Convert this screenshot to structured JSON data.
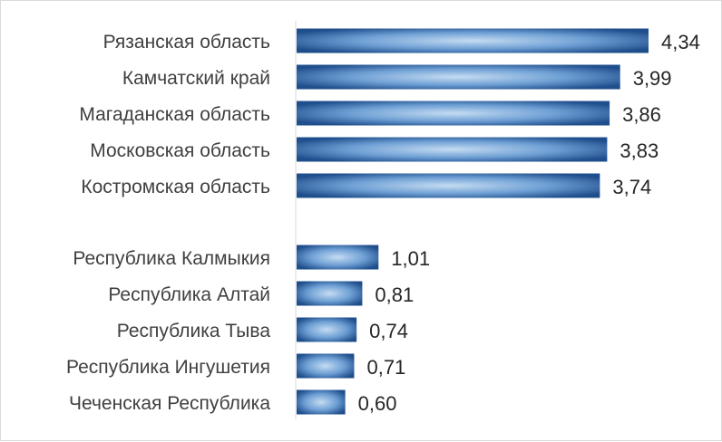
{
  "chart_data": {
    "type": "bar",
    "orientation": "horizontal",
    "title": "",
    "xlabel": "",
    "ylabel": "",
    "grid": false,
    "legend": "none",
    "xlim": [
      0,
      4.34
    ],
    "groups": [
      {
        "categories": [
          "Рязанская область",
          "Камчатский край",
          "Магаданская область",
          "Московская область",
          "Костромская область"
        ],
        "values": [
          4.34,
          3.99,
          3.86,
          3.83,
          3.74
        ],
        "value_labels": [
          "4,34",
          "3,99",
          "3,86",
          "3,83",
          "3,74"
        ]
      },
      {
        "categories": [
          "Республика Калмыкия",
          "Республика Алтай",
          "Республика Тыва",
          "Республика Ингушетия",
          "Чеченская Республика"
        ],
        "values": [
          1.01,
          0.81,
          0.74,
          0.71,
          0.6
        ],
        "value_labels": [
          "1,01",
          "0,81",
          "0,74",
          "0,71",
          "0,60"
        ]
      }
    ],
    "colors": {
      "bar_edge": "#1f4e8c",
      "bar_center": "#c5dcf2",
      "axis": "#d9d9d9"
    }
  }
}
